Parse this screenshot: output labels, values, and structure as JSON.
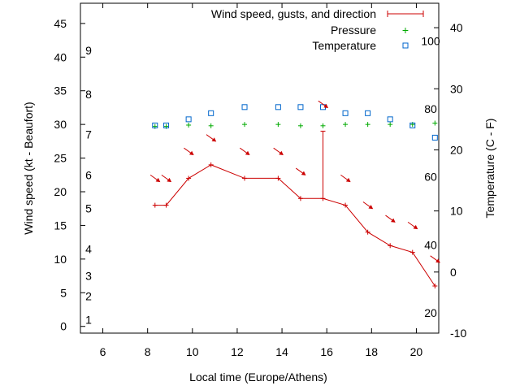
{
  "chart_data": {
    "type": "line",
    "title": "",
    "xlabel": "Local time (Europe/Athens)",
    "ylabel_left": "Wind speed (kt - Beaufort)",
    "ylabel_right": "Temperature (C - F)",
    "xlim": [
      5,
      21
    ],
    "xticks": [
      6,
      8,
      10,
      12,
      14,
      16,
      18,
      20
    ],
    "ylim_left": [
      -1,
      48
    ],
    "yticks_left": [
      0,
      5,
      10,
      15,
      20,
      25,
      30,
      35,
      40,
      45
    ],
    "ylim_right": [
      -10,
      44
    ],
    "yticks_right": [
      -10,
      0,
      10,
      20,
      30,
      40
    ],
    "beaufort_scale": [
      {
        "label": "1",
        "kt": 1
      },
      {
        "label": "2",
        "kt": 4.5
      },
      {
        "label": "3",
        "kt": 7.5
      },
      {
        "label": "4",
        "kt": 11.5
      },
      {
        "label": "5",
        "kt": 17.5
      },
      {
        "label": "6",
        "kt": 22.5
      },
      {
        "label": "7",
        "kt": 28.5
      },
      {
        "label": "8",
        "kt": 34.5
      },
      {
        "label": "9",
        "kt": 41
      }
    ],
    "fahrenheit_scale": [
      {
        "label": "20",
        "c": -6.7
      },
      {
        "label": "40",
        "c": 4.4
      },
      {
        "label": "60",
        "c": 15.6
      },
      {
        "label": "80",
        "c": 26.7
      },
      {
        "label": "100",
        "c": 37.8
      }
    ],
    "legend": [
      "Wind speed, gusts, and direction",
      "Pressure",
      "Temperature"
    ],
    "colors": {
      "wind": "#cc0000",
      "pressure": "#00aa00",
      "temperature": "#0066cc"
    },
    "series": [
      {
        "name": "Wind speed",
        "points": [
          {
            "x": 8.33,
            "y": 18
          },
          {
            "x": 8.83,
            "y": 18
          },
          {
            "x": 9.83,
            "y": 22
          },
          {
            "x": 10.83,
            "y": 24
          },
          {
            "x": 12.33,
            "y": 22
          },
          {
            "x": 13.83,
            "y": 22
          },
          {
            "x": 14.83,
            "y": 19
          },
          {
            "x": 15.83,
            "y": 19
          },
          {
            "x": 16.83,
            "y": 18
          },
          {
            "x": 17.83,
            "y": 14
          },
          {
            "x": 18.83,
            "y": 12
          },
          {
            "x": 19.83,
            "y": 11
          },
          {
            "x": 20.83,
            "y": 6
          }
        ]
      },
      {
        "name": "Gusts",
        "points": [
          {
            "x": 15.83,
            "y": 29
          }
        ]
      },
      {
        "name": "Direction",
        "points": [
          {
            "x": 8.33,
            "y": 22,
            "dir": "SE"
          },
          {
            "x": 8.83,
            "y": 22,
            "dir": "SE"
          },
          {
            "x": 9.83,
            "y": 26,
            "dir": "SE"
          },
          {
            "x": 10.83,
            "y": 28,
            "dir": "SE"
          },
          {
            "x": 12.33,
            "y": 26,
            "dir": "SE"
          },
          {
            "x": 13.83,
            "y": 26,
            "dir": "SE"
          },
          {
            "x": 14.83,
            "y": 23,
            "dir": "SE"
          },
          {
            "x": 15.83,
            "y": 33,
            "dir": "SE"
          },
          {
            "x": 16.83,
            "y": 22,
            "dir": "SE"
          },
          {
            "x": 17.83,
            "y": 18,
            "dir": "SE"
          },
          {
            "x": 18.83,
            "y": 16,
            "dir": "SE"
          },
          {
            "x": 19.83,
            "y": 15,
            "dir": "SE"
          },
          {
            "x": 20.83,
            "y": 10,
            "dir": "SE"
          }
        ]
      },
      {
        "name": "Pressure",
        "points": [
          {
            "x": 8.33,
            "y": 29.7
          },
          {
            "x": 8.83,
            "y": 29.7
          },
          {
            "x": 9.83,
            "y": 29.9
          },
          {
            "x": 10.83,
            "y": 29.8
          },
          {
            "x": 12.33,
            "y": 30.0
          },
          {
            "x": 13.83,
            "y": 30.0
          },
          {
            "x": 14.83,
            "y": 29.8
          },
          {
            "x": 15.83,
            "y": 29.8
          },
          {
            "x": 16.83,
            "y": 30.0
          },
          {
            "x": 17.83,
            "y": 30.0
          },
          {
            "x": 18.83,
            "y": 30.0
          },
          {
            "x": 19.83,
            "y": 30.0
          },
          {
            "x": 20.83,
            "y": 30.2
          }
        ]
      },
      {
        "name": "Temperature",
        "points": [
          {
            "x": 8.33,
            "y": 24
          },
          {
            "x": 8.83,
            "y": 24
          },
          {
            "x": 9.83,
            "y": 25
          },
          {
            "x": 10.83,
            "y": 26
          },
          {
            "x": 12.33,
            "y": 27
          },
          {
            "x": 13.83,
            "y": 27
          },
          {
            "x": 14.83,
            "y": 27
          },
          {
            "x": 15.83,
            "y": 27
          },
          {
            "x": 16.83,
            "y": 26
          },
          {
            "x": 17.83,
            "y": 26
          },
          {
            "x": 18.83,
            "y": 25
          },
          {
            "x": 19.83,
            "y": 24
          },
          {
            "x": 20.83,
            "y": 22
          }
        ]
      }
    ]
  }
}
